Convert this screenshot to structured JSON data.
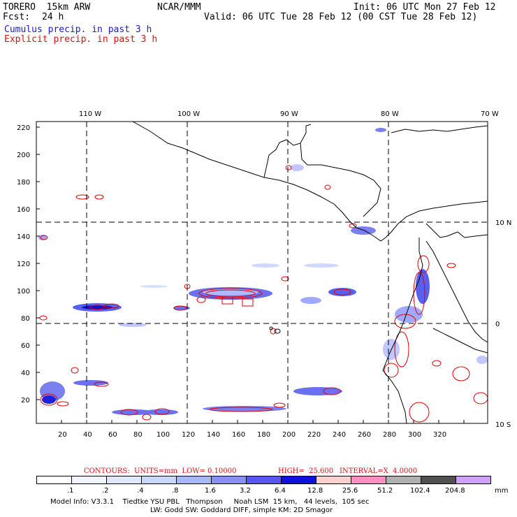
{
  "header": {
    "model_title": "TORERO  15km ARW",
    "fcst_label": "Fcst:",
    "fcst_value": "24 h",
    "org": "NCAR/MMM",
    "init": "Init: 06 UTC Mon 27 Feb 12",
    "valid": "Valid: 06 UTC Tue 28 Feb 12 (00 CST Tue 28 Feb 12)",
    "legend_cumulus": "Cumulus precip. in past 3 h",
    "legend_explicit": "Explicit precip. in past 3 h"
  },
  "map": {
    "top_lon_labels": [
      "110 W",
      "100 W",
      "90 W",
      "80 W",
      "70 W"
    ],
    "right_lat_labels": [
      "10 N",
      "0",
      "10 S"
    ],
    "y_ticks": [
      "220",
      "200",
      "180",
      "160",
      "140",
      "120",
      "100",
      "80",
      "60",
      "40",
      "20"
    ],
    "x_ticks": [
      "20",
      "40",
      "60",
      "80",
      "100",
      "120",
      "140",
      "160",
      "180",
      "200",
      "220",
      "240",
      "260",
      "280",
      "300",
      "320"
    ],
    "colors": {
      "cumulus": "#2020e0",
      "explicit": "#e00000",
      "coast": "#000000"
    }
  },
  "contours_text": {
    "units": "CONTOURS:  UNITS=mm  LOW= 0.10000",
    "high": "HIGH=  25.600",
    "interval": "INTERVAL=X  4.0000"
  },
  "colorbar": {
    "labels": [
      ".1",
      ".2",
      ".4",
      ".8",
      "1.6",
      "3.2",
      "6.4",
      "12.8",
      "25.6",
      "51.2",
      "102.4",
      "204.8"
    ],
    "unit": "mm",
    "colors": [
      "#ffffff",
      "#f2f4ff",
      "#e0e8ff",
      "#c8d8ff",
      "#a8b8ff",
      "#8890f0",
      "#5858f0",
      "#1010e0",
      "#ffd0d0",
      "#ff90c0",
      "#b0b0b0",
      "#505050",
      "#d0a0ff"
    ]
  },
  "footer": {
    "line1": "Model Info: V3.3.1    Tiedtke YSU PBL   Thompson     Noah LSM  15 km,   44 levels,  105 sec",
    "line2": "LW: Godd SW: Goddard DIFF, simple KM: 2D Smagor"
  }
}
